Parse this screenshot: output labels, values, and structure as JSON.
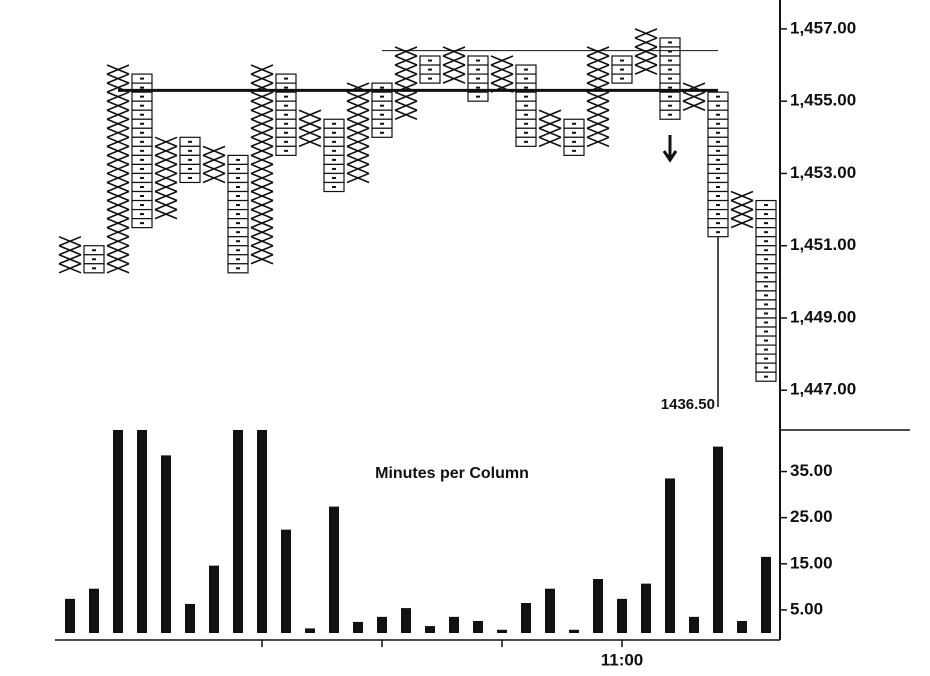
{
  "chart_data": [
    {
      "type": "pointfigure",
      "box_size": 0.25,
      "color": "#111111",
      "ylim": [
        1445.9,
        1457.8
      ],
      "yticks": [
        {
          "value": 1457,
          "label": "1,457.00"
        },
        {
          "value": 1455,
          "label": "1,455.00"
        },
        {
          "value": 1453,
          "label": "1,453.00"
        },
        {
          "value": 1451,
          "label": "1,451.00"
        },
        {
          "value": 1449,
          "label": "1,449.00"
        },
        {
          "value": 1447,
          "label": "1,447.00"
        }
      ],
      "columns": [
        {
          "kind": "X",
          "low": 1450.25,
          "high": 1451.25
        },
        {
          "kind": "O",
          "low": 1450.25,
          "high": 1451.0
        },
        {
          "kind": "X",
          "low": 1450.25,
          "high": 1456.0
        },
        {
          "kind": "O",
          "low": 1451.5,
          "high": 1455.75
        },
        {
          "kind": "X",
          "low": 1451.75,
          "high": 1454.0
        },
        {
          "kind": "O",
          "low": 1452.75,
          "high": 1454.0
        },
        {
          "kind": "X",
          "low": 1452.75,
          "high": 1453.75
        },
        {
          "kind": "O",
          "low": 1450.25,
          "high": 1453.5
        },
        {
          "kind": "X",
          "low": 1450.5,
          "high": 1456.0
        },
        {
          "kind": "O",
          "low": 1453.5,
          "high": 1455.75
        },
        {
          "kind": "X",
          "low": 1453.75,
          "high": 1454.75
        },
        {
          "kind": "O",
          "low": 1452.5,
          "high": 1454.5
        },
        {
          "kind": "X",
          "low": 1452.75,
          "high": 1455.5
        },
        {
          "kind": "O",
          "low": 1454.0,
          "high": 1455.5
        },
        {
          "kind": "X",
          "low": 1454.5,
          "high": 1456.5
        },
        {
          "kind": "O",
          "low": 1455.5,
          "high": 1456.25
        },
        {
          "kind": "X",
          "low": 1455.5,
          "high": 1456.5
        },
        {
          "kind": "O",
          "low": 1455.0,
          "high": 1456.25
        },
        {
          "kind": "X",
          "low": 1455.25,
          "high": 1456.25
        },
        {
          "kind": "O",
          "low": 1453.75,
          "high": 1456.0
        },
        {
          "kind": "X",
          "low": 1453.75,
          "high": 1454.75
        },
        {
          "kind": "O",
          "low": 1453.5,
          "high": 1454.5
        },
        {
          "kind": "X",
          "low": 1453.75,
          "high": 1456.5
        },
        {
          "kind": "O",
          "low": 1455.5,
          "high": 1456.25
        },
        {
          "kind": "X",
          "low": 1455.75,
          "high": 1457.0
        },
        {
          "kind": "O",
          "low": 1454.5,
          "high": 1456.75
        },
        {
          "kind": "X",
          "low": 1454.75,
          "high": 1455.5
        },
        {
          "kind": "O",
          "low": 1451.25,
          "high": 1455.25
        },
        {
          "kind": "X",
          "low": 1451.5,
          "high": 1452.5
        },
        {
          "kind": "O",
          "low": 1447.25,
          "high": 1452.25
        }
      ],
      "hlines": [
        {
          "value": 1455.3,
          "from": 3,
          "to": 28,
          "width": 3
        },
        {
          "value": 1456.4,
          "from": 14,
          "to": 28,
          "width": 1
        }
      ],
      "annotation": {
        "text": "1436.50",
        "column": 28
      }
    },
    {
      "type": "bar",
      "title": "Minutes per Column",
      "color": "#111111",
      "x": [
        1,
        2,
        3,
        4,
        5,
        6,
        7,
        8,
        9,
        10,
        11,
        12,
        13,
        14,
        15,
        16,
        17,
        18,
        19,
        20,
        21,
        22,
        23,
        24,
        25,
        26,
        27,
        28,
        29,
        30
      ],
      "values": [
        7.4,
        9.6,
        44,
        44,
        38.5,
        6.3,
        14.6,
        44,
        44,
        22.4,
        1,
        27.4,
        2.4,
        3.5,
        5.4,
        1.5,
        3.5,
        2.6,
        0.7,
        6.5,
        9.6,
        0.7,
        11.7,
        7.4,
        10.7,
        33.5,
        3.5,
        40.4,
        2.6,
        16.5
      ],
      "ylim": [
        0,
        44
      ],
      "yticks": [
        {
          "value": 35,
          "label": "35.00"
        },
        {
          "value": 25,
          "label": "25.00"
        },
        {
          "value": 15,
          "label": "15.00"
        },
        {
          "value": 5,
          "label": "5.00"
        }
      ],
      "xticks": [
        {
          "value": 9,
          "label": null
        },
        {
          "value": 14,
          "label": null
        },
        {
          "value": 19,
          "label": null
        },
        {
          "value": 24,
          "label": "11:00"
        }
      ]
    }
  ]
}
